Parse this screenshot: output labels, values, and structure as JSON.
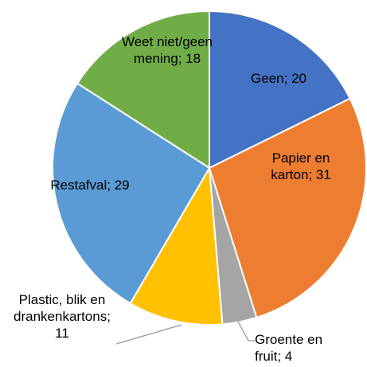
{
  "chart_data": {
    "type": "pie",
    "categories": [
      "Geen",
      "Papier en karton",
      "Groente en fruit",
      "Plastic, blik en drankenkartons",
      "Restafval",
      "Weet niet/geen mening"
    ],
    "values": [
      20,
      31,
      4,
      11,
      29,
      18
    ],
    "colors": [
      "#4472c4",
      "#ed7d31",
      "#a5a5a5",
      "#ffc000",
      "#5b9bd5",
      "#70ad47"
    ],
    "label_separator": "; "
  }
}
